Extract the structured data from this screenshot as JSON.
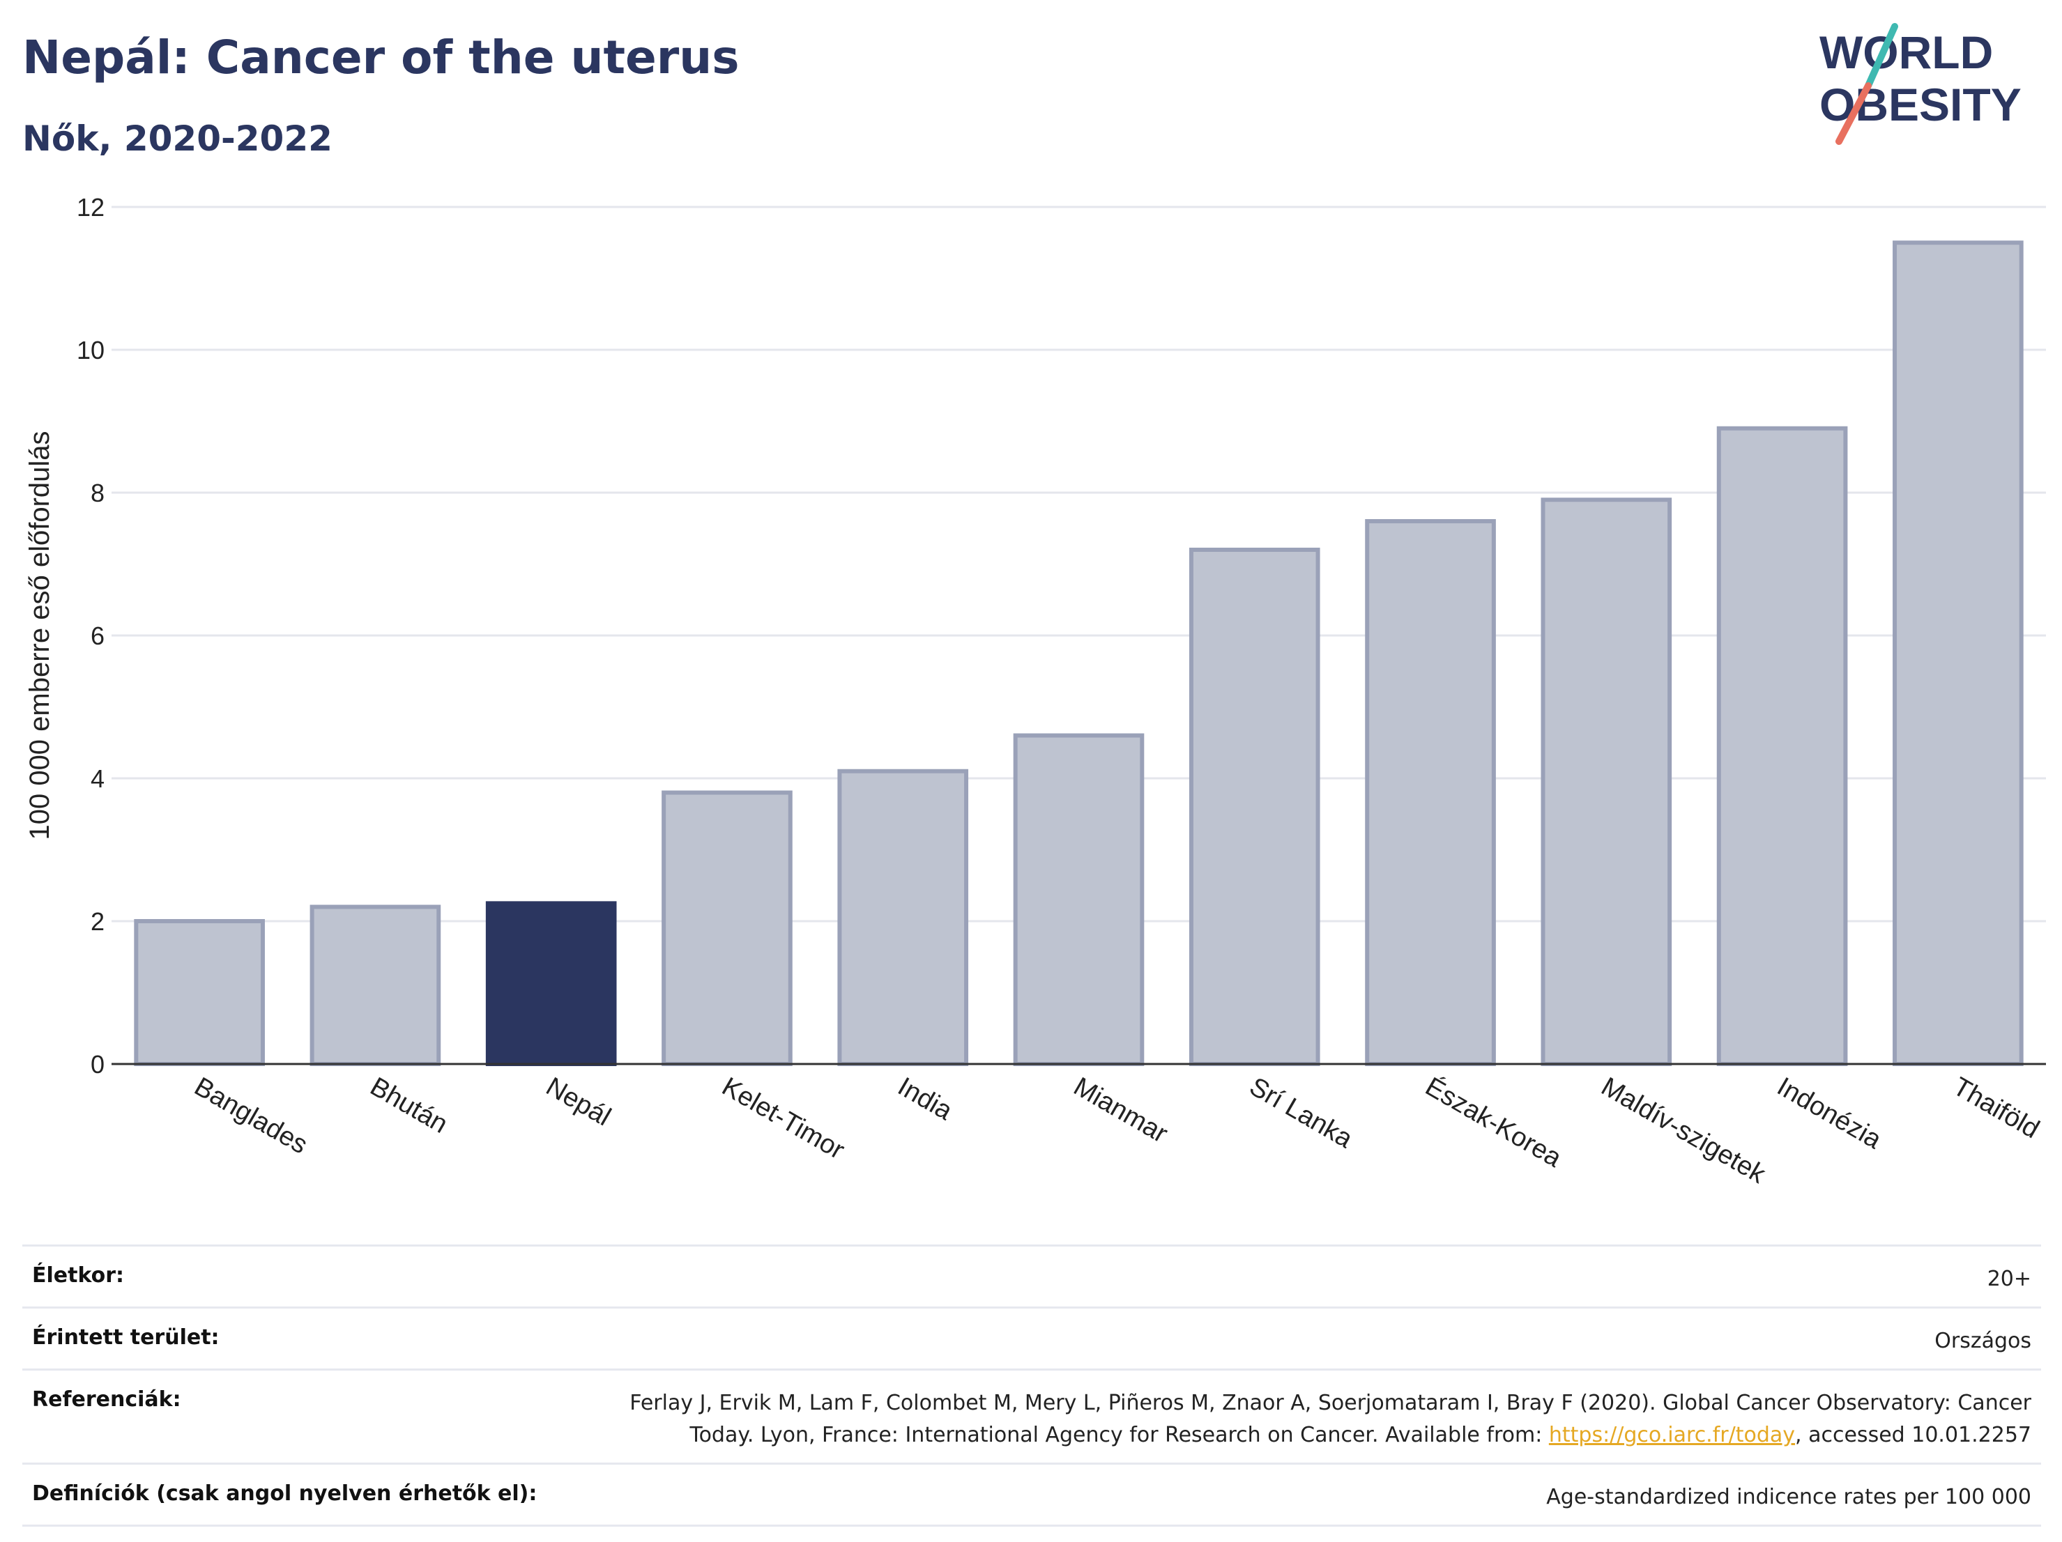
{
  "title": "Nepál: Cancer of the uterus",
  "subtitle": "Nők, 2020-2022",
  "logo": {
    "line1": "WORLD",
    "line2": "OBESITY"
  },
  "colors": {
    "highlight": "#2b3660",
    "bar": "#bec3d0",
    "bar_edge": "#9aa1b8",
    "text": "#2b3660"
  },
  "chart_data": {
    "type": "bar",
    "title": "Nepál: Cancer of the uterus",
    "subtitle": "Nők, 2020-2022",
    "ylabel": "100 000 emberre eső előfordulás",
    "xlabel": "",
    "ylim": [
      0,
      12
    ],
    "yticks": [
      0,
      2,
      4,
      6,
      8,
      10,
      12
    ],
    "grid": true,
    "highlight": "Nepál",
    "categories": [
      "Banglades",
      "Bhután",
      "Nepál",
      "Kelet-Timor",
      "India",
      "Mianmar",
      "Srí Lanka",
      "Észak-Korea",
      "Maldív-szigetek",
      "Indonézia",
      "Thaiföld"
    ],
    "values": [
      2.0,
      2.2,
      2.25,
      3.8,
      4.1,
      4.6,
      7.2,
      7.6,
      7.9,
      8.9,
      11.5
    ]
  },
  "meta": {
    "age_label": "Életkor:",
    "age_value": "20+",
    "area_label": "Érintett terület:",
    "area_value": "Országos",
    "ref_label": "Referenciák:",
    "ref_line1": "Ferlay J, Ervik M, Lam F, Colombet M, Mery L, Piñeros M, Znaor A, Soerjomataram I, Bray F (2020). Global Cancer Observatory: Cancer",
    "ref_line2_a": "Today. Lyon, France: International Agency for Research on Cancer. Available from: ",
    "ref_link": "https://gco.iarc.fr/today",
    "ref_line2_b": ", accessed 10.01.2257",
    "def_label": "Definíciók (csak angol nyelven érhetők el):",
    "def_value": "Age-standardized indicence rates per 100 000"
  }
}
